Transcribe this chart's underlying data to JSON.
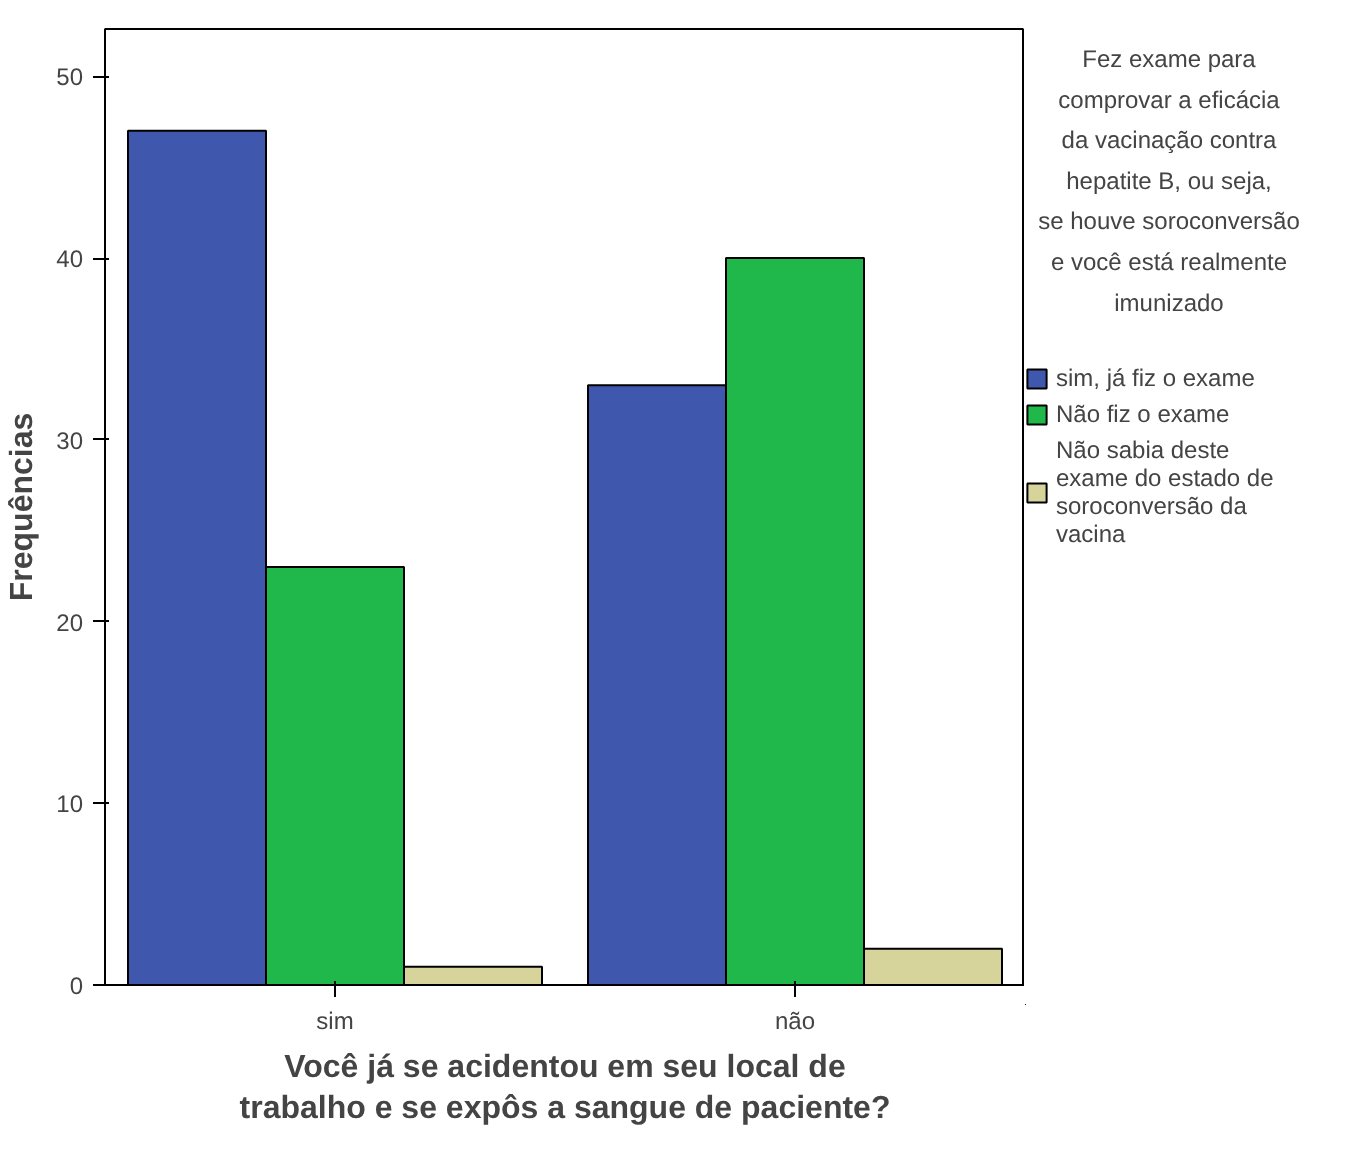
{
  "chart_data": {
    "type": "bar",
    "categories": [
      "sim",
      "não"
    ],
    "xlabel": "Você já se acidentou em seu local de trabalho e se expôs a sangue de paciente?",
    "ylabel": "Frequências",
    "legend_title": "Fez exame para comprovar a eficácia da vacinação contra hepatite B, ou seja, se houve soroconversão e você está realmente imunizado",
    "series": [
      {
        "name": "sim, já fiz o exame",
        "color": "#3f58ae",
        "values": [
          47,
          33
        ]
      },
      {
        "name": "Não fiz o exame",
        "color": "#20b84a",
        "values": [
          23,
          40
        ]
      },
      {
        "name": "Não sabia deste exame do estado de soroconversão da vacina",
        "color": "#d6d39b",
        "values": [
          1,
          2
        ]
      }
    ],
    "ylim": [
      0,
      52.6
    ],
    "yticks": [
      0,
      10,
      20,
      30,
      40,
      50
    ],
    "grid": false,
    "legend": "right"
  }
}
